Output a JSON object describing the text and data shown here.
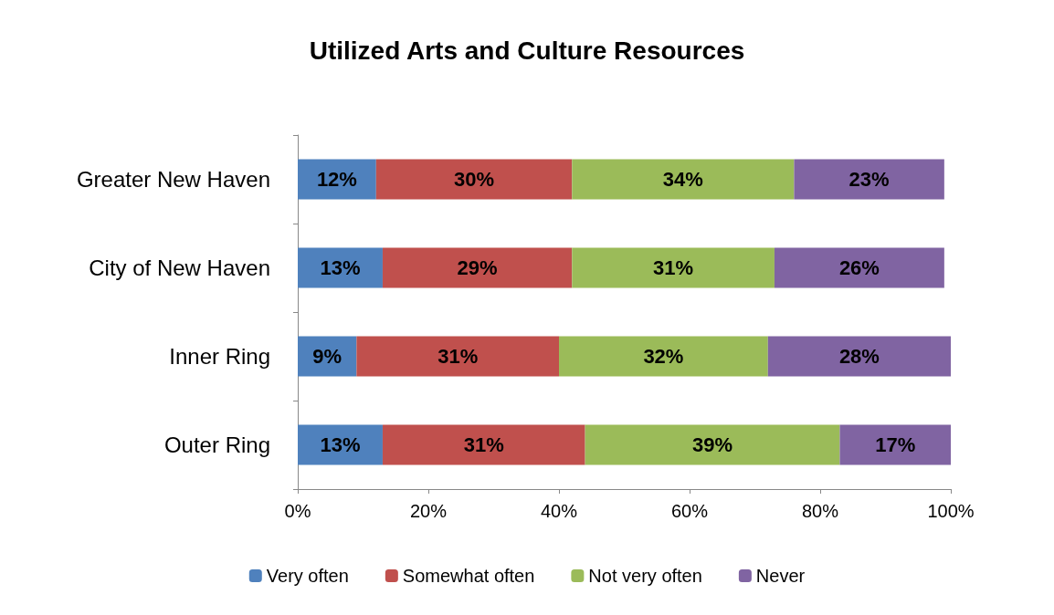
{
  "chart_data": {
    "type": "bar",
    "title": "Utilized Arts and Culture Resources",
    "orientation": "horizontal",
    "stacked": true,
    "categories": [
      "Greater New Haven",
      "City of New Haven",
      "Inner Ring",
      "Outer Ring"
    ],
    "series": [
      {
        "name": "Very often",
        "color": "#4f81bd",
        "values": [
          12,
          13,
          9,
          13
        ],
        "value_labels": [
          "12%",
          "13%",
          "9%",
          "13%"
        ]
      },
      {
        "name": "Somewhat often",
        "color": "#c0504d",
        "values": [
          30,
          29,
          31,
          31
        ],
        "value_labels": [
          "30%",
          "29%",
          "31%",
          "31%"
        ]
      },
      {
        "name": "Not very often",
        "color": "#9bbb59",
        "values": [
          34,
          31,
          32,
          39
        ],
        "value_labels": [
          "34%",
          "31%",
          "32%",
          "39%"
        ]
      },
      {
        "name": "Never",
        "color": "#8064a2",
        "values": [
          23,
          26,
          28,
          17
        ],
        "value_labels": [
          "23%",
          "26%",
          "28%",
          "17%"
        ]
      }
    ],
    "xlim": [
      0,
      100
    ],
    "xticks": [
      {
        "value": 0,
        "label": "0%"
      },
      {
        "value": 20,
        "label": "20%"
      },
      {
        "value": 40,
        "label": "40%"
      },
      {
        "value": 60,
        "label": "60%"
      },
      {
        "value": 80,
        "label": "80%"
      },
      {
        "value": 100,
        "label": "100%"
      }
    ],
    "grid": false,
    "legend": "bottom"
  }
}
